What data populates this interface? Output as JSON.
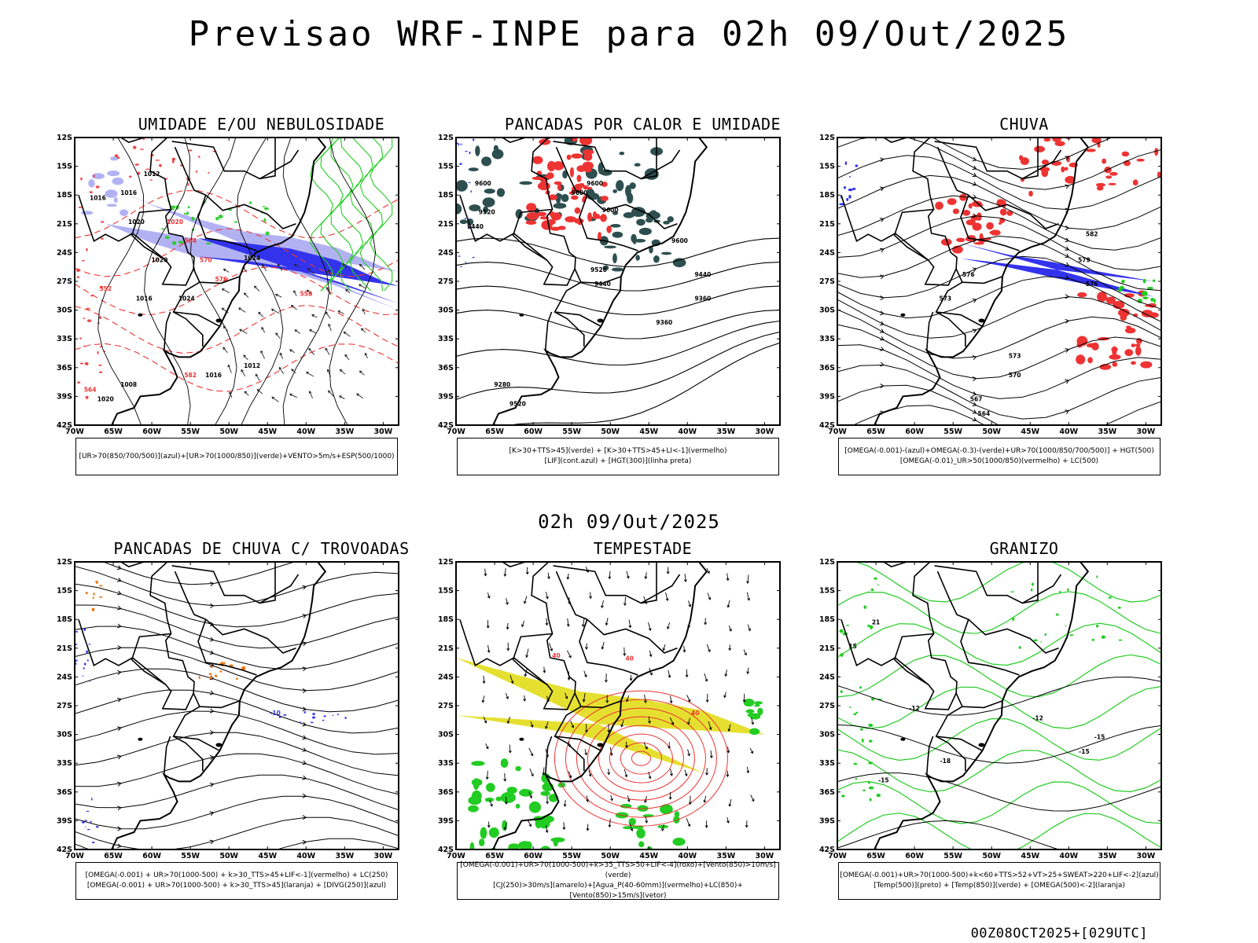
{
  "header": {
    "title": "Previsao WRF-INPE  para 02h 09/Out/2025",
    "subtitle": "02h 09/Out/2025",
    "footer": "00Z08OCT2025+[029UTC]"
  },
  "axes": {
    "lat_labels": [
      "12S",
      "15S",
      "18S",
      "21S",
      "24S",
      "27S",
      "30S",
      "33S",
      "36S",
      "39S",
      "42S"
    ],
    "lon_labels": [
      "70W",
      "65W",
      "60W",
      "55W",
      "50W",
      "45W",
      "40W",
      "35W",
      "30W"
    ]
  },
  "colors": {
    "blue": "#3333ee",
    "lightblue": "#aaaaf2",
    "green": "#22cc22",
    "red": "#ee3333",
    "darkteal": "#2e4f4f",
    "yellow": "#e5e030",
    "orange": "#ee7711"
  },
  "panels": [
    {
      "title": "UMIDADE E/OU NEBULOSIDADE",
      "legend": [
        "[UR>70(850/700/500)](azul)+[UR>70(1000/850)](verde)+VENTO>5m/s+ESP(500/1000)"
      ],
      "contour_labels": [
        "1012",
        "1016",
        "1016",
        "1020",
        "1020",
        "1024",
        "1024",
        "1016",
        "1012",
        "1008",
        "1020",
        "1016",
        "1020",
        "564",
        "570",
        "576",
        "582",
        "558",
        "552",
        "564"
      ]
    },
    {
      "title": "PANCADAS POR CALOR E UMIDADE",
      "legend": [
        "[K>30+TTS>45](verde) + [K>30+TTS>45+LI<-1](vermelho)",
        "[LIF](cont.azul) + [HGT(300)](linha preta)"
      ],
      "contour_labels": [
        "9600",
        "9600",
        "9600",
        "9600",
        "9520",
        "9520",
        "9440",
        "9440",
        "9360",
        "9360",
        "9280",
        "9520",
        "9440",
        "9600"
      ]
    },
    {
      "title": "CHUVA",
      "legend": [
        "[OMEGA(-0.001)-(azul)+OMEGA(-0.3)-(verde)+UR>70(1000/850/700/500)] + HGT(500)",
        "[OMEGA(-0.01)_UR>50(1000/850)(vermelho) + LC(500)"
      ],
      "contour_labels": [
        "582",
        "579",
        "576",
        "573",
        "570",
        "567",
        "564",
        "576",
        "573"
      ]
    },
    {
      "title": "PANCADAS DE CHUVA C/ TROVOADAS",
      "legend": [
        "[OMEGA(-0.001) + UR>70(1000-500) + k>30_TTS>45+LIF<-1](vermelho) + LC(250)",
        "[OMEGA(-0.001) + UR>70(1000-500) + k>30_TTS>45](laranja) + [DIVG(250)](azul)"
      ],
      "contour_labels": [
        "-10"
      ]
    },
    {
      "title": "TEMPESTADE",
      "legend": [
        "[OMEGA(-0.001)+UR>70(1000-500)+k>35_TTS>50+LIF<-4](roxo)+[Vento(850)>10m/s](verde)",
        "[CJ(250)>30m/s](amarelo)+[Agua_P(40-60mm)](vermelho)+LC(850)+[Vento(850)>15m/s](vetor)"
      ],
      "contour_labels": [
        "40",
        "40",
        "40"
      ]
    },
    {
      "title": "GRANIZO",
      "legend": [
        "[OMEGA(-0.001)+UR>70(1000-500)+k<60+TTS>52+VT>25+SWEAT>220+LIF<-2](azul)",
        "[Temp(500)](preto) + [Temp(850)](verde) + [OMEGA(500)<-2](laranja)"
      ],
      "contour_labels": [
        "-12",
        "-12",
        "-15",
        "-15",
        "-15",
        "21",
        "15",
        "-18"
      ]
    }
  ]
}
